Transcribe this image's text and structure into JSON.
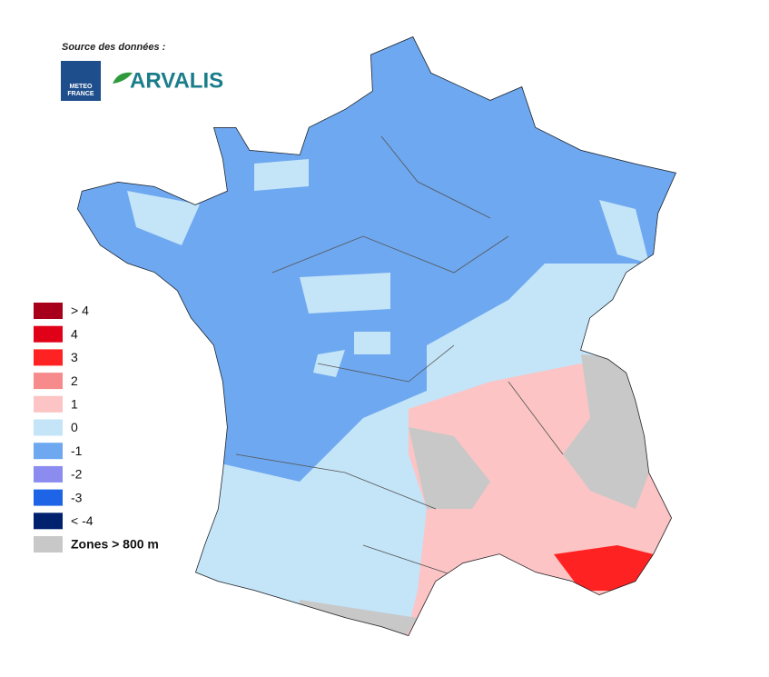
{
  "header": {
    "source": "Source des données :",
    "meteo_logo": [
      "METEO",
      "FRANCE"
    ],
    "arvalis_logo": "ARVALIS"
  },
  "legend": {
    "items": [
      {
        "label": "> 4",
        "color": "#a8001a"
      },
      {
        "label": "4",
        "color": "#e00018"
      },
      {
        "label": "3",
        "color": "#ff2222"
      },
      {
        "label": "2",
        "color": "#f78a8a"
      },
      {
        "label": "1",
        "color": "#fcc4c4"
      },
      {
        "label": "0",
        "color": "#c4e4f8"
      },
      {
        "label": "-1",
        "color": "#6ea8f0"
      },
      {
        "label": "-2",
        "color": "#8c8cf0"
      },
      {
        "label": "-3",
        "color": "#1e64e6"
      },
      {
        "label": "< -4",
        "color": "#00216e"
      },
      {
        "label": "Zones > 800 m",
        "color": "#c8c8c8"
      }
    ]
  }
}
